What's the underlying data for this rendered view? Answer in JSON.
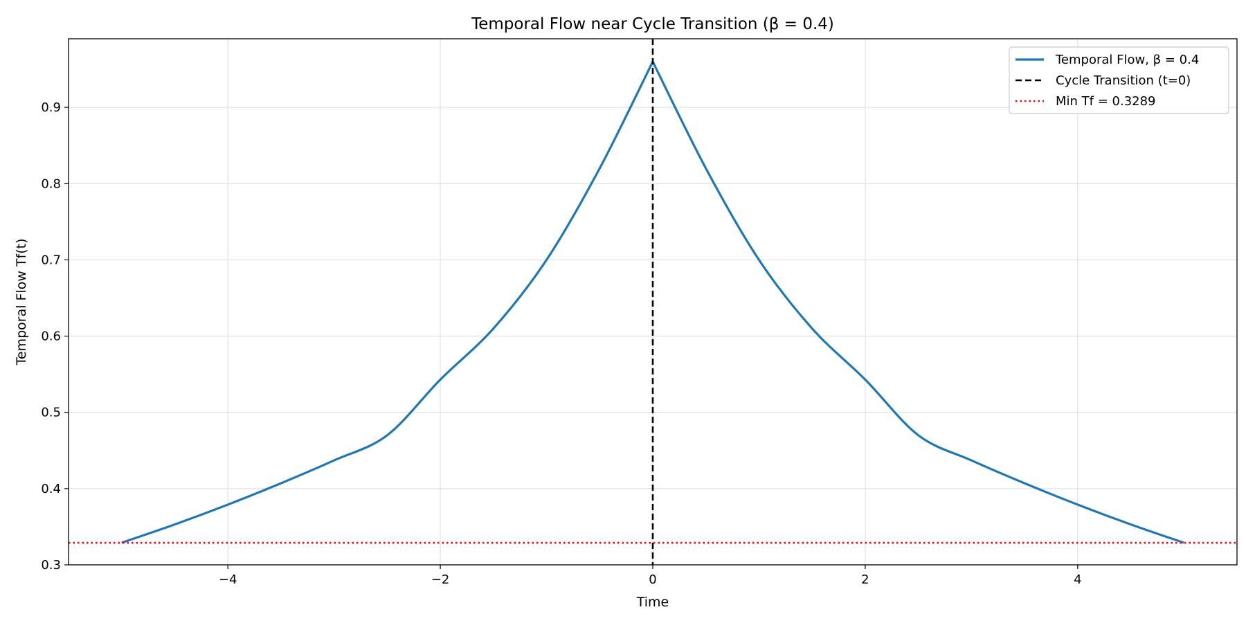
{
  "chart_data": {
    "type": "line",
    "title": "Temporal Flow near Cycle Transition (β = 0.4)",
    "xlabel": "Time",
    "ylabel": "Temporal Flow Tf(t)",
    "xlim": [
      -5.5,
      5.5
    ],
    "ylim": [
      0.3,
      0.99
    ],
    "x_ticks": [
      -4,
      -2,
      0,
      2,
      4
    ],
    "x_tick_labels": [
      "−4",
      "−2",
      "0",
      "2",
      "4"
    ],
    "y_ticks": [
      0.3,
      0.4,
      0.5,
      0.6,
      0.7,
      0.8,
      0.9
    ],
    "y_tick_labels": [
      "0.3",
      "0.4",
      "0.5",
      "0.6",
      "0.7",
      "0.8",
      "0.9"
    ],
    "grid": true,
    "legend_position": "top-right",
    "series": [
      {
        "name": "Temporal Flow, β = 0.4",
        "style": "solid",
        "color": "#1f77b4",
        "x": [
          -5,
          -4.5,
          -4,
          -3.5,
          -3,
          -2.5,
          -2,
          -1.5,
          -1,
          -0.5,
          0,
          0.5,
          1,
          1.5,
          2,
          2.5,
          3,
          3.5,
          4,
          4.5,
          5
        ],
        "y": [
          0.329,
          0.353,
          0.379,
          0.407,
          0.437,
          0.47,
          0.543,
          0.61,
          0.7,
          0.82,
          0.96,
          0.82,
          0.7,
          0.61,
          0.543,
          0.47,
          0.437,
          0.407,
          0.379,
          0.353,
          0.329
        ]
      }
    ],
    "reference_lines": [
      {
        "name": "Cycle Transition (t=0)",
        "orientation": "vertical",
        "value": 0,
        "style": "dashed",
        "color": "#000000"
      },
      {
        "name": "Min Tf = 0.3289",
        "orientation": "horizontal",
        "value": 0.3289,
        "style": "dotted",
        "color": "#ff0000"
      }
    ]
  }
}
